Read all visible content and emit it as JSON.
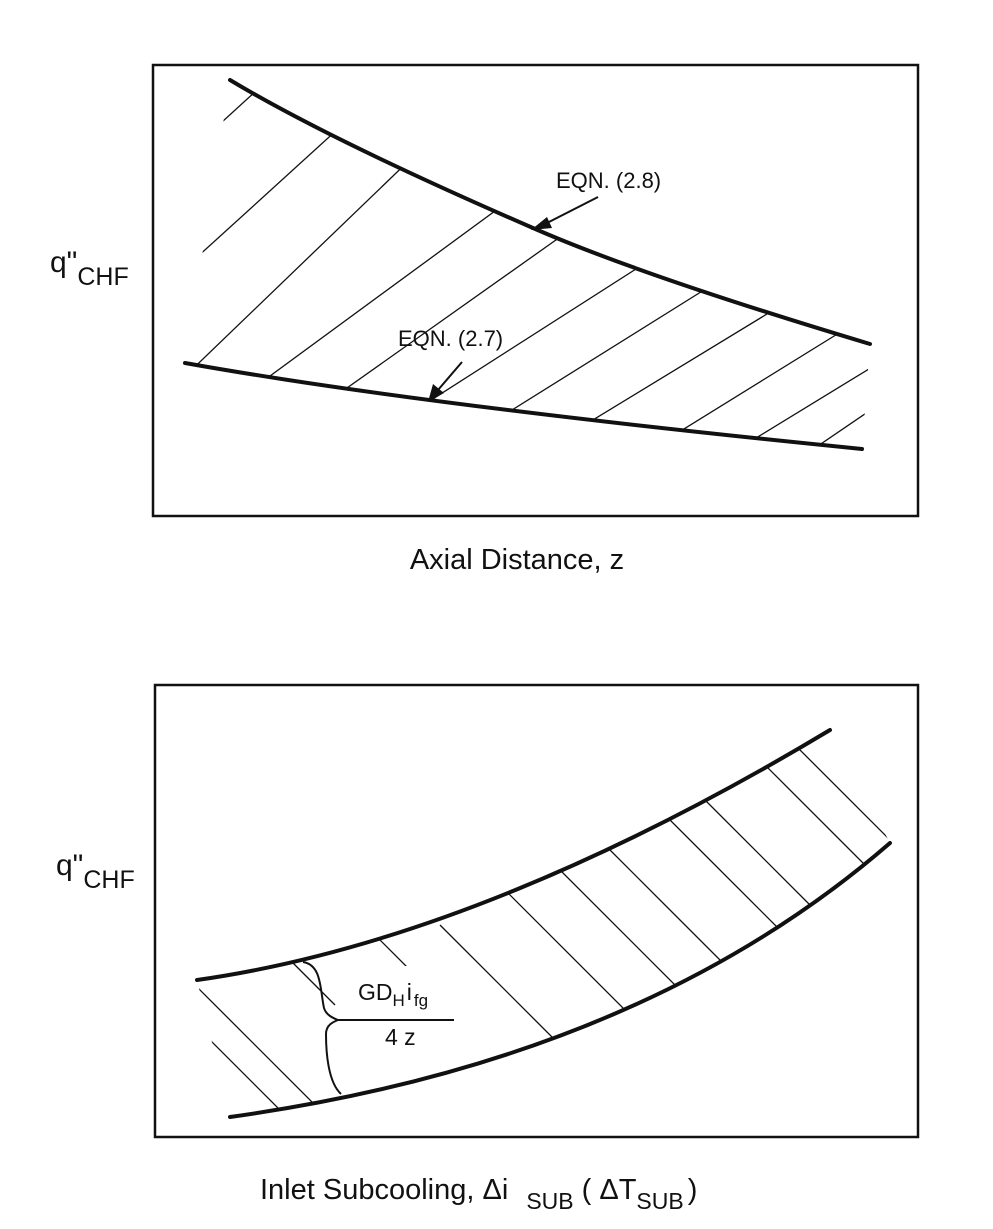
{
  "diagram_top": {
    "y_label": "q\"",
    "y_label_subscript": "CHF",
    "x_label": "Axial Distance, z",
    "upper_curve_label": "EQN. (2.8)",
    "lower_curve_label": "EQN. (2.7)"
  },
  "diagram_bottom": {
    "y_label": "q\"",
    "y_label_subscript": "CHF",
    "x_label_main": "Inlet Subcooling,  Δi",
    "x_label_sub": "SUB",
    "x_label_paren_open": "( ΔT",
    "x_label_paren_sub": "SUB",
    "x_label_paren_close": ")",
    "gap_numerator": "GD",
    "gap_numerator_sub_h": "H",
    "gap_numerator_i": "i",
    "gap_numerator_sub_fg": "fg",
    "gap_denominator": "4 z"
  },
  "colors": {
    "ink": "#111111",
    "background": "#ffffff"
  }
}
